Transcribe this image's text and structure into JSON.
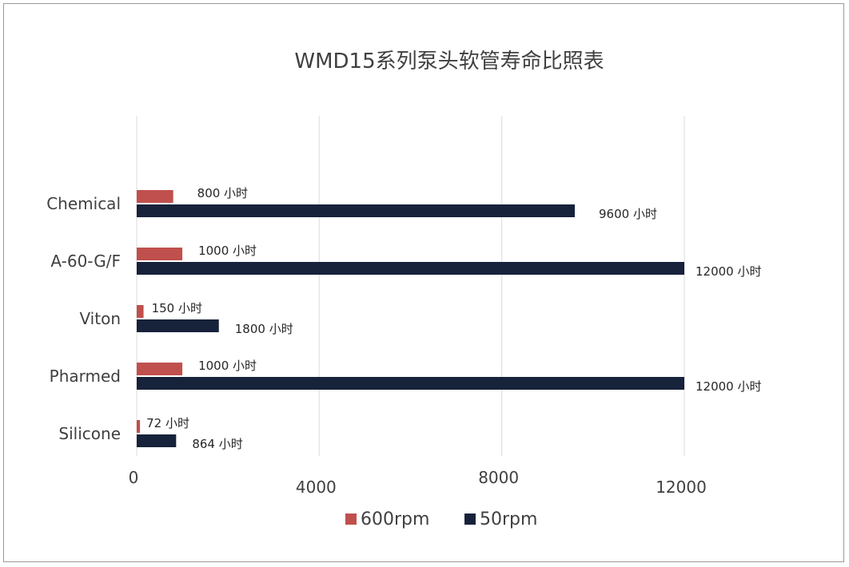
{
  "chart_data": {
    "type": "bar",
    "orientation": "horizontal",
    "title": "WMD15系列泵头软管寿命比照表",
    "categories": [
      "Chemical",
      "A-60-G/F",
      "Viton",
      "Pharmed",
      "Silicone"
    ],
    "series": [
      {
        "name": "600rpm",
        "color": "#C0504D",
        "values": [
          800,
          1000,
          150,
          1000,
          72
        ],
        "labels": [
          "800  小时",
          "1000   小时",
          "150  小时",
          "1000   小时",
          "72 小时"
        ]
      },
      {
        "name": "50rpm",
        "color": "#17223B",
        "values": [
          9600,
          12000,
          1800,
          12000,
          864
        ],
        "labels": [
          "9600  小时",
          "12000   小时",
          "1800   小时",
          "12000   小时",
          "864  小时"
        ]
      }
    ],
    "xlim": [
      0,
      12000
    ],
    "xticks": [
      0,
      4000,
      8000,
      12000
    ],
    "xtick_labels": [
      "0",
      "4000",
      "8000",
      "12000"
    ],
    "grid": true,
    "legend_position": "bottom"
  }
}
